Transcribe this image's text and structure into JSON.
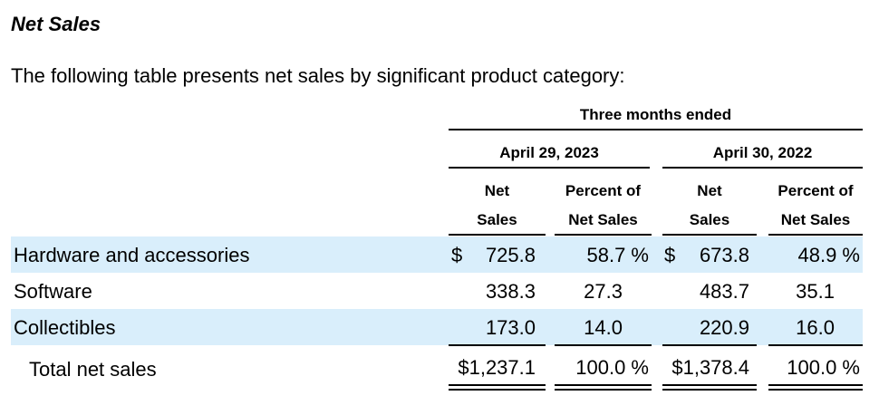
{
  "section": {
    "heading": "Net Sales",
    "intro": "The following table presents net sales by significant product category:"
  },
  "table": {
    "period_header": "Three months ended",
    "periods": [
      "April 29, 2023",
      "April 30, 2022"
    ],
    "col_headers": {
      "net_line1": "Net",
      "net_line2": "Sales",
      "pct_line1": "Percent of",
      "pct_line2": "Net Sales"
    },
    "rows": [
      {
        "label": "Hardware and accessories",
        "cur": "$",
        "net_2023": "725.8",
        "pct_2023": "58.7 %",
        "cur2": "$",
        "net_2022": "673.8",
        "pct_2022": "48.9 %",
        "shaded": true
      },
      {
        "label": "Software",
        "cur": "",
        "net_2023": "338.3",
        "pct_2023": "27.3",
        "cur2": "",
        "net_2022": "483.7",
        "pct_2022": "35.1",
        "shaded": false
      },
      {
        "label": "Collectibles",
        "cur": "",
        "net_2023": "173.0",
        "pct_2023": "14.0",
        "cur2": "",
        "net_2022": "220.9",
        "pct_2022": "16.0",
        "shaded": true
      }
    ],
    "total": {
      "label": "Total net sales",
      "net_2023": "$1,237.1",
      "pct_2023": "100.0 %",
      "net_2022": "$1,378.4",
      "pct_2022": "100.0 %"
    },
    "colors": {
      "row_shade": "#d9eefb"
    }
  }
}
